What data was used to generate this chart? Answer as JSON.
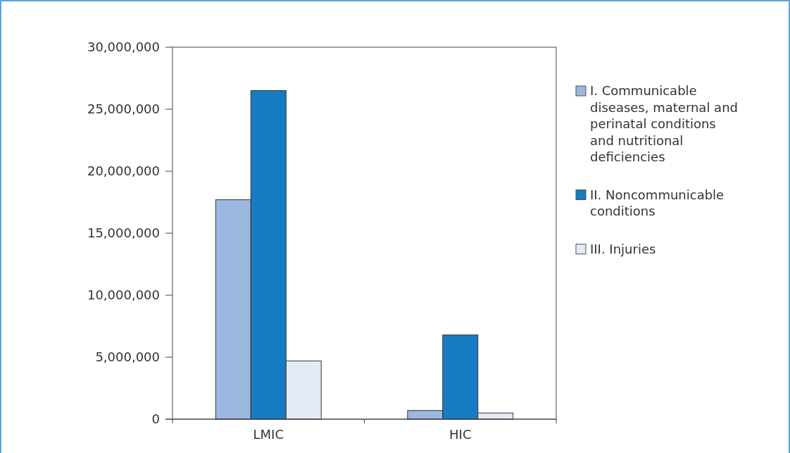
{
  "chart_data": {
    "type": "bar",
    "categories": [
      "LMIC",
      "HIC"
    ],
    "series": [
      {
        "name": "I. Communicable diseases, maternal and perinatal conditions and nutritional deficiencies",
        "color": "#9cb7e0",
        "values": [
          17700000,
          700000
        ]
      },
      {
        "name": "II. Noncommunicable conditions",
        "color": "#157bc2",
        "values": [
          26500000,
          6800000
        ]
      },
      {
        "name": "III. Injuries",
        "color": "#e4ebf6",
        "values": [
          4700000,
          500000
        ]
      }
    ],
    "ylim": [
      0,
      30000000
    ],
    "yticks": [
      {
        "value": 0,
        "label": "0"
      },
      {
        "value": 5000000,
        "label": "5,000,000"
      },
      {
        "value": 10000000,
        "label": "10,000,000"
      },
      {
        "value": 15000000,
        "label": "15,000,000"
      },
      {
        "value": 20000000,
        "label": "20,000,000"
      },
      {
        "value": 25000000,
        "label": "25,000,000"
      },
      {
        "value": 30000000,
        "label": "30,000,000"
      }
    ],
    "legend": "right"
  }
}
